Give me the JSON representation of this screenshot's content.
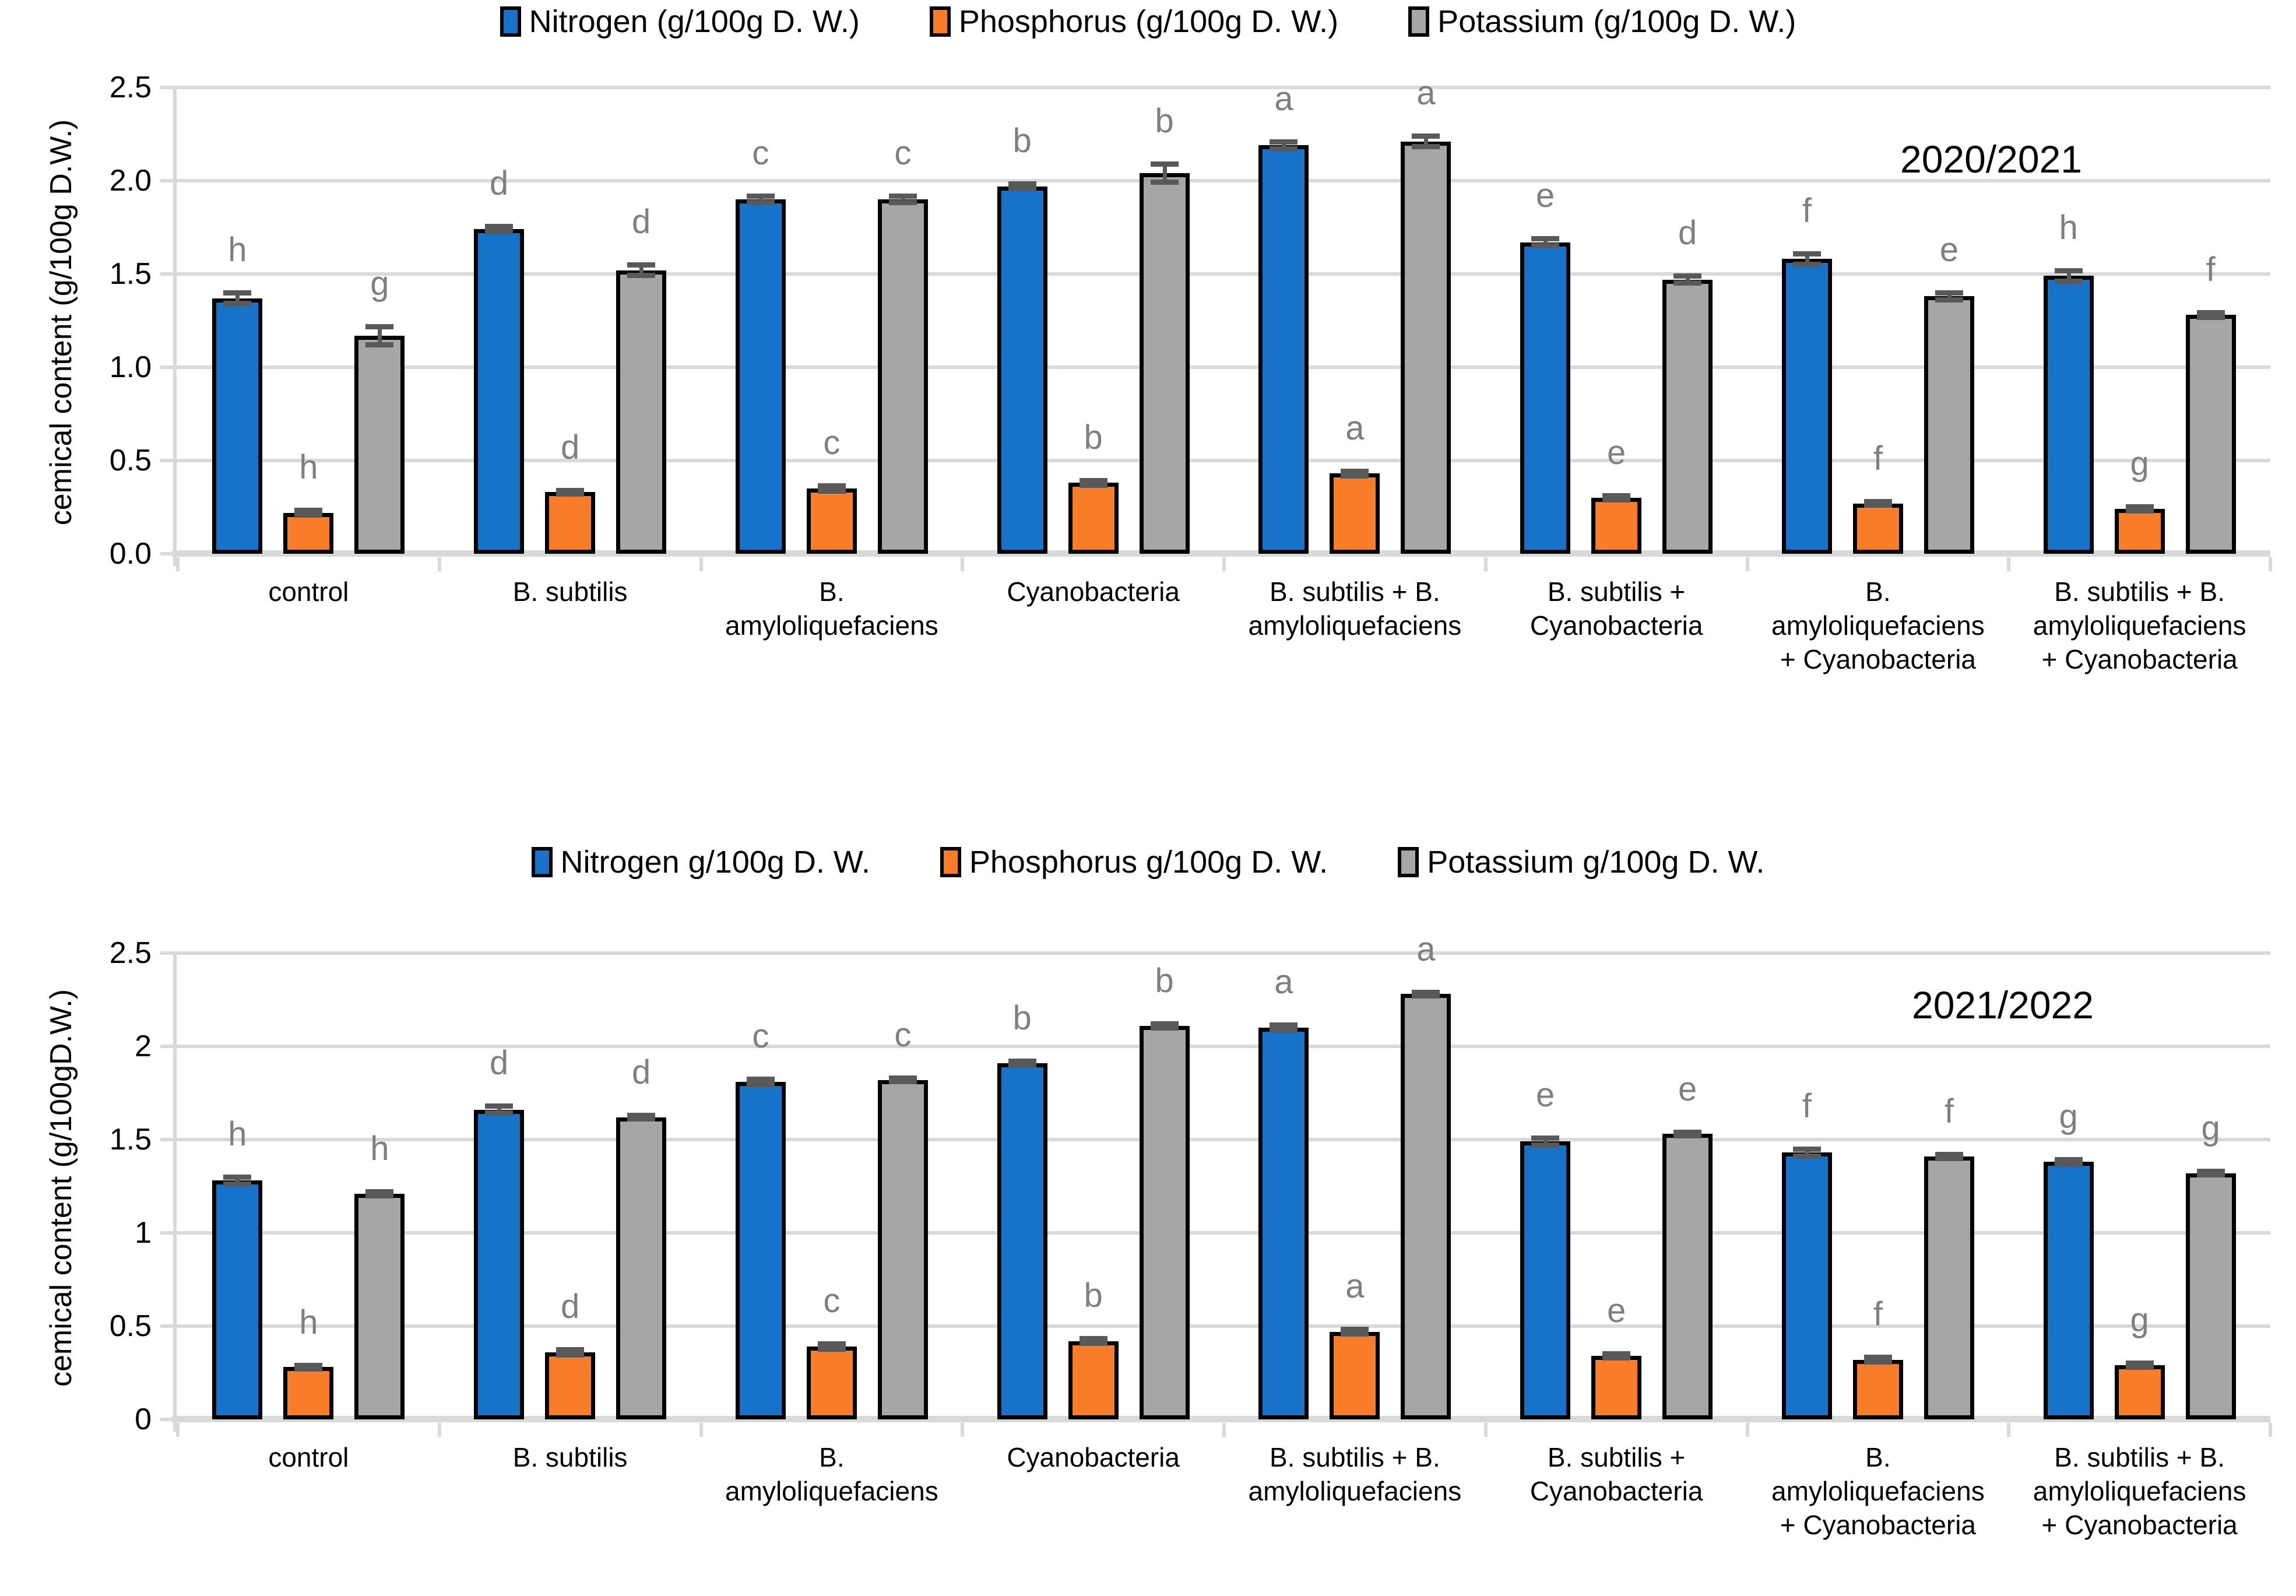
{
  "colors": {
    "nitrogen": "#1772C9",
    "phosphorus": "#F97D28",
    "potassium": "#A6A6A6",
    "bar_border": "#000000",
    "error_bar": "#595959",
    "gridline": "#D9D9D9",
    "letter": "#7F7F7F"
  },
  "chart_data": [
    {
      "type": "bar",
      "title": "2020/2021",
      "ylabel": "cemical content (g/100g D.W.)",
      "xlabel": "",
      "ylim": [
        0,
        2.5
      ],
      "grid": true,
      "legend_position": "top-center",
      "yticks": [
        {
          "value": 0.0,
          "label": "0.0"
        },
        {
          "value": 0.5,
          "label": "0.5"
        },
        {
          "value": 1.0,
          "label": "1.0"
        },
        {
          "value": 1.5,
          "label": "1.5"
        },
        {
          "value": 2.0,
          "label": "2.0"
        },
        {
          "value": 2.5,
          "label": "2.5"
        }
      ],
      "legend": [
        "Nitrogen (g/100g D. W.)",
        "Phosphorus (g/100g D. W.)",
        "Potassium (g/100g D. W.)"
      ],
      "categories": [
        "control",
        "B. subtilis",
        "B.\namyloliquefaciens",
        "Cyanobacteria",
        "B. subtilis + B.\namyloliquefaciens",
        "B. subtilis +\nCyanobacteria",
        "B.\namyloliquefaciens\n+ Cyanobacteria",
        "B. subtilis + B.\namyloliquefaciens\n+ Cyanobacteria"
      ],
      "series": [
        {
          "name": "Nitrogen (g/100g D. W.)",
          "color_key": "nitrogen",
          "values": [
            1.37,
            1.74,
            1.9,
            1.97,
            2.19,
            1.67,
            1.58,
            1.49
          ],
          "errors": [
            0.03,
            0.015,
            0.02,
            0.015,
            0.02,
            0.02,
            0.03,
            0.03
          ],
          "letters": [
            "h",
            "d",
            "c",
            "b",
            "a",
            "e",
            "f",
            "h"
          ]
        },
        {
          "name": "Phosphorus (g/100g D. W.)",
          "color_key": "phosphorus",
          "values": [
            0.22,
            0.33,
            0.35,
            0.38,
            0.43,
            0.3,
            0.27,
            0.24
          ],
          "errors": [
            0.015,
            0.012,
            0.015,
            0.015,
            0.015,
            0.012,
            0.012,
            0.012
          ],
          "letters": [
            "h",
            "d",
            "c",
            "b",
            "a",
            "e",
            "f",
            "g"
          ]
        },
        {
          "name": "Potassium (g/100g D. W.)",
          "color_key": "potassium",
          "values": [
            1.17,
            1.52,
            1.9,
            2.04,
            2.21,
            1.47,
            1.38,
            1.28
          ],
          "errors": [
            0.05,
            0.03,
            0.02,
            0.05,
            0.03,
            0.02,
            0.02,
            0.015
          ],
          "letters": [
            "g",
            "d",
            "c",
            "b",
            "a",
            "d",
            "e",
            "f"
          ]
        }
      ]
    },
    {
      "type": "bar",
      "title": "2021/2022",
      "ylabel": "cemical content (g/100gD.W.)",
      "xlabel": "",
      "ylim": [
        0,
        2.5
      ],
      "grid": true,
      "legend_position": "top-center",
      "yticks": [
        {
          "value": 0.0,
          "label": "0"
        },
        {
          "value": 0.5,
          "label": "0.5"
        },
        {
          "value": 1.0,
          "label": "1"
        },
        {
          "value": 1.5,
          "label": "1.5"
        },
        {
          "value": 2.0,
          "label": "2"
        },
        {
          "value": 2.5,
          "label": "2.5"
        }
      ],
      "legend": [
        "Nitrogen g/100g D. W.",
        "Phosphorus g/100g D. W.",
        "Potassium g/100g D. W."
      ],
      "categories": [
        "control",
        "B. subtilis",
        "B.\namyloliquefaciens",
        "Cyanobacteria",
        "B. subtilis + B.\namyloliquefaciens",
        "B. subtilis +\nCyanobacteria",
        "B.\namyloliquefaciens\n+ Cyanobacteria",
        "B. subtilis + B.\namyloliquefaciens\n+ Cyanobacteria"
      ],
      "series": [
        {
          "name": "Nitrogen g/100g D. W.",
          "color_key": "nitrogen",
          "values": [
            1.28,
            1.66,
            1.81,
            1.91,
            2.1,
            1.49,
            1.43,
            1.38
          ],
          "errors": [
            0.02,
            0.02,
            0.015,
            0.012,
            0.015,
            0.02,
            0.02,
            0.015
          ],
          "letters": [
            "h",
            "d",
            "c",
            "b",
            "a",
            "e",
            "f",
            "g"
          ]
        },
        {
          "name": "Phosphorus g/100g D. W.",
          "color_key": "phosphorus",
          "values": [
            0.28,
            0.36,
            0.39,
            0.42,
            0.47,
            0.34,
            0.32,
            0.29
          ],
          "errors": [
            0.012,
            0.015,
            0.015,
            0.015,
            0.015,
            0.012,
            0.015,
            0.012
          ],
          "letters": [
            "h",
            "d",
            "c",
            "b",
            "a",
            "e",
            "f",
            "g"
          ]
        },
        {
          "name": "Potassium g/100g D. W.",
          "color_key": "potassium",
          "values": [
            1.21,
            1.62,
            1.82,
            2.11,
            2.28,
            1.53,
            1.41,
            1.32
          ],
          "errors": [
            0.012,
            0.012,
            0.012,
            0.012,
            0.012,
            0.012,
            0.012,
            0.012
          ],
          "letters": [
            "h",
            "d",
            "c",
            "b",
            "a",
            "e",
            "f",
            "g"
          ]
        }
      ]
    }
  ]
}
